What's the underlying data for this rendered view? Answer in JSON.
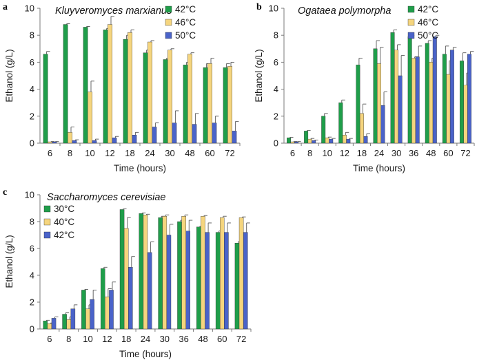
{
  "colors": {
    "green": "#1f9e4a",
    "yellow": "#f5d57e",
    "blue": "#4a63c9",
    "axis": "#7a7a7a",
    "err": "#555555"
  },
  "chart_data": [
    {
      "type": "bar",
      "panel_label": "a",
      "title": "Kluyveromyces marxianus",
      "xlabel": "Time (hours)",
      "ylabel": "Ethanol (g/L)",
      "ylim": [
        0,
        10
      ],
      "yticks": [
        0,
        2,
        4,
        6,
        8,
        10
      ],
      "categories": [
        "6",
        "8",
        "10",
        "12",
        "18",
        "24",
        "30",
        "48",
        "60",
        "72"
      ],
      "legend_position": "top-right",
      "series": [
        {
          "name": "42°C",
          "color": "green",
          "values": [
            6.6,
            8.8,
            8.6,
            8.4,
            7.7,
            6.7,
            6.2,
            5.8,
            5.6,
            5.6
          ],
          "errors": [
            0.2,
            0.05,
            0.05,
            0.1,
            0.3,
            0.2,
            0.1,
            0.2,
            0.3,
            0.3
          ]
        },
        {
          "name": "46°C",
          "color": "yellow",
          "values": [
            0.1,
            0.8,
            3.8,
            8.8,
            8.2,
            7.5,
            6.9,
            6.6,
            5.9,
            5.7
          ],
          "errors": [
            0.02,
            0.4,
            0.8,
            0.6,
            0.2,
            0.1,
            0.1,
            0.1,
            0.4,
            0.3
          ]
        },
        {
          "name": "50°C",
          "color": "blue",
          "values": [
            0.1,
            0.2,
            0.2,
            0.4,
            0.6,
            1.2,
            1.5,
            1.4,
            1.5,
            0.9
          ],
          "errors": [
            0.02,
            0.05,
            0.1,
            0.1,
            0.2,
            0.3,
            0.9,
            0.8,
            0.5,
            0.7
          ]
        }
      ]
    },
    {
      "type": "bar",
      "panel_label": "b",
      "title": "Ogataea polymorpha",
      "xlabel": "Time (hours)",
      "ylabel": "Ethanol (g/L)",
      "ylim": [
        0,
        10
      ],
      "yticks": [
        0,
        2,
        4,
        6,
        8,
        10
      ],
      "categories": [
        "6",
        "8",
        "10",
        "12",
        "18",
        "24",
        "30",
        "36",
        "48",
        "60",
        "72"
      ],
      "legend_position": "top-right",
      "series": [
        {
          "name": "42°C",
          "color": "green",
          "values": [
            0.4,
            0.9,
            2.0,
            3.0,
            5.8,
            7.0,
            8.2,
            7.9,
            7.4,
            6.6,
            6.1
          ],
          "errors": [
            0.03,
            0.05,
            0.2,
            0.2,
            0.5,
            0.6,
            0.2,
            0.1,
            0.2,
            0.6,
            0.6
          ]
        },
        {
          "name": "46°C",
          "color": "yellow",
          "values": [
            0.1,
            0.3,
            0.4,
            0.6,
            2.2,
            5.9,
            6.9,
            6.3,
            6.0,
            5.1,
            4.3
          ],
          "errors": [
            0.02,
            0.05,
            0.05,
            0.2,
            0.7,
            1.2,
            0.4,
            0.1,
            0.3,
            1.0,
            0.9
          ]
        },
        {
          "name": "50°C",
          "color": "blue",
          "values": [
            0.1,
            0.2,
            0.3,
            0.3,
            0.5,
            2.8,
            5.0,
            6.4,
            7.9,
            6.9,
            6.6
          ],
          "errors": [
            0.02,
            0.03,
            0.05,
            0.05,
            0.2,
            1.0,
            1.5,
            0.8,
            0.1,
            0.2,
            0.2
          ]
        }
      ]
    },
    {
      "type": "bar",
      "panel_label": "c",
      "title": "Saccharomyces cerevisiae",
      "xlabel": "Time (hours)",
      "ylabel": "Ethanol (g/L)",
      "ylim": [
        0,
        10
      ],
      "yticks": [
        0,
        2,
        4,
        6,
        8,
        10
      ],
      "categories": [
        "6",
        "8",
        "10",
        "12",
        "18",
        "24",
        "30",
        "36",
        "48",
        "60",
        "72"
      ],
      "legend_position": "top-left",
      "series": [
        {
          "name": "30°C",
          "color": "green",
          "values": [
            0.6,
            1.1,
            2.9,
            4.5,
            8.9,
            8.6,
            8.3,
            8.0,
            7.6,
            7.2,
            6.4
          ],
          "errors": [
            0.05,
            0.1,
            0.05,
            0.1,
            0.05,
            0.05,
            0.1,
            0.1,
            0.05,
            0.1,
            0.1
          ]
        },
        {
          "name": "40°C",
          "color": "yellow",
          "values": [
            0.4,
            0.7,
            1.5,
            2.4,
            7.5,
            8.5,
            8.4,
            8.4,
            8.4,
            8.3,
            8.3
          ],
          "errors": [
            0.05,
            0.2,
            0.3,
            0.6,
            0.8,
            0.05,
            0.1,
            0.1,
            0.05,
            0.1,
            0.05
          ]
        },
        {
          "name": "42°C",
          "color": "blue",
          "values": [
            0.8,
            1.5,
            2.2,
            2.9,
            4.6,
            5.7,
            7.0,
            7.3,
            7.2,
            7.2,
            7.2
          ],
          "errors": [
            0.1,
            0.3,
            0.7,
            0.6,
            0.8,
            0.8,
            0.8,
            0.8,
            0.7,
            0.7,
            0.7
          ]
        }
      ]
    }
  ]
}
